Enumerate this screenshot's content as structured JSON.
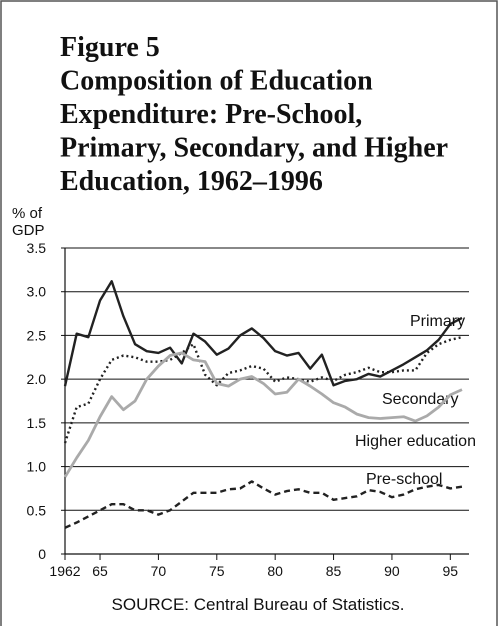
{
  "chart_data": {
    "type": "line",
    "title": [
      "Figure 5",
      "Composition of Education",
      "Expenditure: Pre-School,",
      "Primary, Secondary, and Higher",
      "Education, 1962–1996"
    ],
    "ylabel": [
      "% of",
      "GDP"
    ],
    "source": "SOURCE: Central Bureau of Statistics.",
    "x": [
      1962,
      1963,
      1964,
      1965,
      1966,
      1967,
      1968,
      1969,
      1970,
      1971,
      1972,
      1973,
      1974,
      1975,
      1976,
      1977,
      1978,
      1979,
      1980,
      1981,
      1982,
      1983,
      1984,
      1985,
      1986,
      1987,
      1988,
      1989,
      1990,
      1991,
      1992,
      1993,
      1994,
      1995,
      1996
    ],
    "xlim": [
      1962,
      1996.6
    ],
    "xticks": [
      1962,
      {
        "value": 1965,
        "label": "65"
      },
      {
        "value": 1970,
        "label": "70"
      },
      {
        "value": 1975,
        "label": "75"
      },
      {
        "value": 1980,
        "label": "80"
      },
      {
        "value": 1985,
        "label": "85"
      },
      {
        "value": 1990,
        "label": "90"
      },
      {
        "value": 1995,
        "label": "95"
      }
    ],
    "ylim": [
      0,
      3.5
    ],
    "yticks": [
      0,
      0.5,
      {
        "value": 1,
        "label": "1.0"
      },
      1.5,
      {
        "value": 2,
        "label": "2.0"
      },
      2.5,
      {
        "value": 3,
        "label": "3.0"
      },
      3.5
    ],
    "grid": true,
    "series": [
      {
        "name": "Primary",
        "color": "#222222",
        "style": "solid",
        "values": [
          1.92,
          2.52,
          2.48,
          2.9,
          3.12,
          2.72,
          2.4,
          2.32,
          2.3,
          2.36,
          2.18,
          2.52,
          2.43,
          2.28,
          2.35,
          2.5,
          2.58,
          2.47,
          2.32,
          2.27,
          2.3,
          2.12,
          2.28,
          1.93,
          1.98,
          2.0,
          2.06,
          2.03,
          2.1,
          2.17,
          2.25,
          2.33,
          2.45,
          2.63,
          2.7
        ]
      },
      {
        "name": "Secondary",
        "color": "#222222",
        "style": "dotted",
        "values": [
          1.27,
          1.68,
          1.72,
          2.0,
          2.22,
          2.27,
          2.25,
          2.2,
          2.2,
          2.22,
          2.3,
          2.4,
          2.05,
          1.93,
          2.07,
          2.1,
          2.15,
          2.12,
          1.97,
          2.02,
          2.0,
          1.97,
          2.02,
          1.98,
          2.05,
          2.08,
          2.13,
          2.08,
          2.08,
          2.1,
          2.1,
          2.3,
          2.4,
          2.45,
          2.48
        ]
      },
      {
        "name": "Higher education",
        "color": "#aaaaaa",
        "style": "solid",
        "values": [
          0.88,
          1.1,
          1.3,
          1.57,
          1.8,
          1.65,
          1.75,
          2.0,
          2.15,
          2.27,
          2.3,
          2.22,
          2.2,
          1.95,
          1.92,
          2.0,
          2.03,
          1.95,
          1.83,
          1.85,
          2.0,
          1.92,
          1.83,
          1.73,
          1.68,
          1.6,
          1.56,
          1.55,
          1.56,
          1.57,
          1.52,
          1.58,
          1.68,
          1.82,
          1.88
        ]
      },
      {
        "name": "Pre-school",
        "color": "#222222",
        "style": "dashed",
        "values": [
          0.3,
          0.36,
          0.43,
          0.5,
          0.57,
          0.57,
          0.5,
          0.5,
          0.45,
          0.5,
          0.6,
          0.7,
          0.7,
          0.7,
          0.74,
          0.75,
          0.83,
          0.75,
          0.68,
          0.72,
          0.74,
          0.7,
          0.7,
          0.62,
          0.64,
          0.66,
          0.73,
          0.71,
          0.65,
          0.68,
          0.74,
          0.77,
          0.79,
          0.75,
          0.77
        ]
      }
    ]
  }
}
